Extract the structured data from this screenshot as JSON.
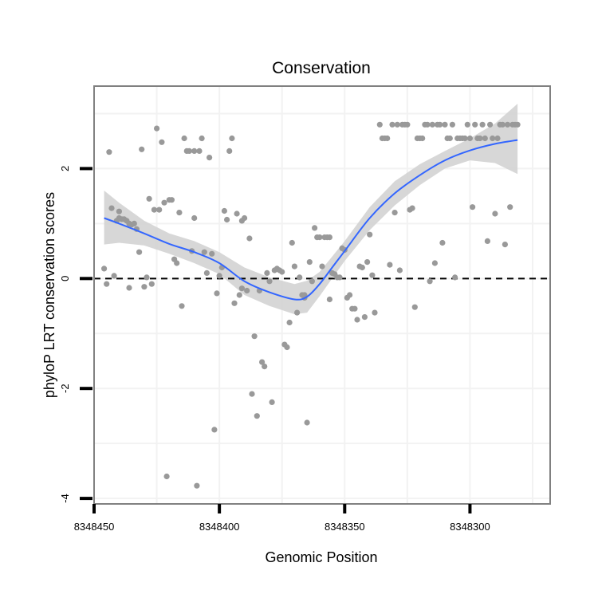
{
  "chart_data": {
    "type": "scatter",
    "title": "Conservation",
    "xlabel": "Genomic Position",
    "ylabel": "phyloP LRT conservation scores",
    "x_reversed": true,
    "xlim": [
      8348450,
      8348268
    ],
    "ylim": [
      -4.1,
      3.5
    ],
    "x_ticks": [
      8348450,
      8348400,
      8348350,
      8348300
    ],
    "x_tick_labels": [
      "8348450",
      "8348400",
      "8348350",
      "8348300"
    ],
    "y_ticks": [
      -4,
      -2,
      0,
      2
    ],
    "y_tick_labels": [
      "-4",
      "-2",
      "0",
      "2"
    ],
    "grid": true,
    "reference_line": {
      "y": 0,
      "style": "dashed",
      "color": "#000000"
    },
    "colors": {
      "points": "#999999",
      "smooth": "#3366ff",
      "band": "#d3d3d3",
      "grid": "#f2f2f2",
      "panel_border": "#808080"
    },
    "points": [
      [
        8348446,
        0.18
      ],
      [
        8348445,
        -0.1
      ],
      [
        8348444,
        2.3
      ],
      [
        8348443,
        1.28
      ],
      [
        8348442,
        0.05
      ],
      [
        8348441,
        1.05
      ],
      [
        8348440,
        1.1
      ],
      [
        8348440,
        1.22
      ],
      [
        8348439,
        1.08
      ],
      [
        8348438,
        1.08
      ],
      [
        8348437,
        1.05
      ],
      [
        8348436,
        1.0
      ],
      [
        8348436,
        -0.17
      ],
      [
        8348435,
        0.98
      ],
      [
        8348434,
        1.0
      ],
      [
        8348433,
        0.9
      ],
      [
        8348432,
        0.48
      ],
      [
        8348431,
        2.35
      ],
      [
        8348430,
        -0.15
      ],
      [
        8348429,
        0.02
      ],
      [
        8348428,
        1.45
      ],
      [
        8348427,
        -0.1
      ],
      [
        8348426,
        1.25
      ],
      [
        8348425,
        2.73
      ],
      [
        8348424,
        1.25
      ],
      [
        8348423,
        2.48
      ],
      [
        8348422,
        1.38
      ],
      [
        8348421,
        -3.6
      ],
      [
        8348420,
        1.43
      ],
      [
        8348419,
        1.43
      ],
      [
        8348418,
        0.35
      ],
      [
        8348417,
        0.28
      ],
      [
        8348416,
        1.2
      ],
      [
        8348415,
        -0.5
      ],
      [
        8348414,
        2.55
      ],
      [
        8348413,
        2.32
      ],
      [
        8348412,
        2.32
      ],
      [
        8348411,
        0.5
      ],
      [
        8348410,
        2.32
      ],
      [
        8348410,
        1.1
      ],
      [
        8348409,
        -3.77
      ],
      [
        8348408,
        2.32
      ],
      [
        8348407,
        2.55
      ],
      [
        8348406,
        0.48
      ],
      [
        8348405,
        0.1
      ],
      [
        8348404,
        2.2
      ],
      [
        8348403,
        0.45
      ],
      [
        8348402,
        -2.75
      ],
      [
        8348401,
        -0.27
      ],
      [
        8348400,
        0.05
      ],
      [
        8348399,
        0.2
      ],
      [
        8348398,
        1.23
      ],
      [
        8348397,
        1.07
      ],
      [
        8348396,
        2.32
      ],
      [
        8348395,
        2.55
      ],
      [
        8348394,
        -0.45
      ],
      [
        8348393,
        1.18
      ],
      [
        8348392,
        -0.3
      ],
      [
        8348391,
        1.05
      ],
      [
        8348391,
        -0.18
      ],
      [
        8348390,
        1.1
      ],
      [
        8348389,
        -0.22
      ],
      [
        8348388,
        0.73
      ],
      [
        8348387,
        -2.1
      ],
      [
        8348386,
        -1.05
      ],
      [
        8348385,
        -2.5
      ],
      [
        8348384,
        -0.22
      ],
      [
        8348383,
        -1.52
      ],
      [
        8348382,
        -1.6
      ],
      [
        8348381,
        0.1
      ],
      [
        8348380,
        -0.05
      ],
      [
        8348379,
        -2.25
      ],
      [
        8348378,
        0.15
      ],
      [
        8348377,
        0.18
      ],
      [
        8348376,
        0.15
      ],
      [
        8348375,
        0.12
      ],
      [
        8348374,
        -1.2
      ],
      [
        8348373,
        -1.25
      ],
      [
        8348372,
        -0.8
      ],
      [
        8348371,
        0.65
      ],
      [
        8348370,
        0.22
      ],
      [
        8348369,
        -0.62
      ],
      [
        8348368,
        0.02
      ],
      [
        8348367,
        -0.3
      ],
      [
        8348366,
        -0.35
      ],
      [
        8348366,
        -0.3
      ],
      [
        8348365,
        -2.62
      ],
      [
        8348364,
        0.3
      ],
      [
        8348363,
        -0.05
      ],
      [
        8348362,
        0.92
      ],
      [
        8348361,
        0.75
      ],
      [
        8348360,
        0.75
      ],
      [
        8348359,
        0.22
      ],
      [
        8348358,
        0.75
      ],
      [
        8348357,
        0.75
      ],
      [
        8348356,
        0.75
      ],
      [
        8348356,
        -0.38
      ],
      [
        8348355,
        0.1
      ],
      [
        8348354,
        0.08
      ],
      [
        8348353,
        0.02
      ],
      [
        8348352,
        0.02
      ],
      [
        8348351,
        0.55
      ],
      [
        8348350,
        0.52
      ],
      [
        8348349,
        -0.35
      ],
      [
        8348348,
        -0.3
      ],
      [
        8348347,
        -0.55
      ],
      [
        8348346,
        -0.55
      ],
      [
        8348345,
        -0.75
      ],
      [
        8348344,
        0.22
      ],
      [
        8348343,
        0.2
      ],
      [
        8348342,
        -0.7
      ],
      [
        8348341,
        0.3
      ],
      [
        8348340,
        0.8
      ],
      [
        8348339,
        0.06
      ],
      [
        8348338,
        -0.62
      ],
      [
        8348336,
        2.8
      ],
      [
        8348335,
        2.55
      ],
      [
        8348334,
        2.55
      ],
      [
        8348333,
        2.55
      ],
      [
        8348332,
        0.25
      ],
      [
        8348331,
        2.8
      ],
      [
        8348330,
        1.2
      ],
      [
        8348329,
        2.8
      ],
      [
        8348328,
        0.15
      ],
      [
        8348327,
        2.8
      ],
      [
        8348326,
        2.8
      ],
      [
        8348325,
        2.8
      ],
      [
        8348324,
        1.25
      ],
      [
        8348323,
        1.28
      ],
      [
        8348322,
        -0.52
      ],
      [
        8348321,
        2.55
      ],
      [
        8348320,
        2.55
      ],
      [
        8348319,
        2.55
      ],
      [
        8348318,
        2.8
      ],
      [
        8348317,
        2.8
      ],
      [
        8348316,
        -0.05
      ],
      [
        8348315,
        2.8
      ],
      [
        8348314,
        0.28
      ],
      [
        8348313,
        2.8
      ],
      [
        8348312,
        2.8
      ],
      [
        8348311,
        0.65
      ],
      [
        8348310,
        2.8
      ],
      [
        8348309,
        2.55
      ],
      [
        8348308,
        2.55
      ],
      [
        8348307,
        2.8
      ],
      [
        8348306,
        0.02
      ],
      [
        8348305,
        2.55
      ],
      [
        8348304,
        2.55
      ],
      [
        8348303,
        2.55
      ],
      [
        8348302,
        2.55
      ],
      [
        8348301,
        2.8
      ],
      [
        8348300,
        2.55
      ],
      [
        8348299,
        1.3
      ],
      [
        8348298,
        2.8
      ],
      [
        8348297,
        2.55
      ],
      [
        8348296,
        2.55
      ],
      [
        8348295,
        2.8
      ],
      [
        8348294,
        2.55
      ],
      [
        8348293,
        0.68
      ],
      [
        8348292,
        2.8
      ],
      [
        8348291,
        2.55
      ],
      [
        8348290,
        1.18
      ],
      [
        8348289,
        2.55
      ],
      [
        8348288,
        2.8
      ],
      [
        8348287,
        2.8
      ],
      [
        8348286,
        0.62
      ],
      [
        8348285,
        2.8
      ],
      [
        8348284,
        1.3
      ],
      [
        8348283,
        2.8
      ],
      [
        8348282,
        2.8
      ],
      [
        8348281,
        2.8
      ]
    ],
    "smooth": {
      "x": [
        8348446,
        8348440,
        8348430,
        8348420,
        8348410,
        8348400,
        8348390,
        8348380,
        8348370,
        8348365,
        8348360,
        8348355,
        8348350,
        8348340,
        8348330,
        8348320,
        8348310,
        8348300,
        8348290,
        8348281
      ],
      "y": [
        1.1,
        1.0,
        0.82,
        0.63,
        0.48,
        0.28,
        -0.05,
        -0.25,
        -0.38,
        -0.33,
        -0.1,
        0.2,
        0.5,
        1.1,
        1.55,
        1.88,
        2.15,
        2.33,
        2.45,
        2.52
      ],
      "lower": [
        0.62,
        0.65,
        0.6,
        0.45,
        0.28,
        0.08,
        -0.3,
        -0.5,
        -0.65,
        -0.62,
        -0.32,
        0.0,
        0.32,
        0.88,
        1.33,
        1.7,
        2.0,
        2.15,
        2.1,
        1.9
      ],
      "upper": [
        1.6,
        1.38,
        1.05,
        0.82,
        0.68,
        0.48,
        0.2,
        0.02,
        -0.1,
        -0.04,
        0.12,
        0.4,
        0.68,
        1.3,
        1.77,
        2.08,
        2.32,
        2.55,
        2.82,
        3.18
      ]
    }
  }
}
